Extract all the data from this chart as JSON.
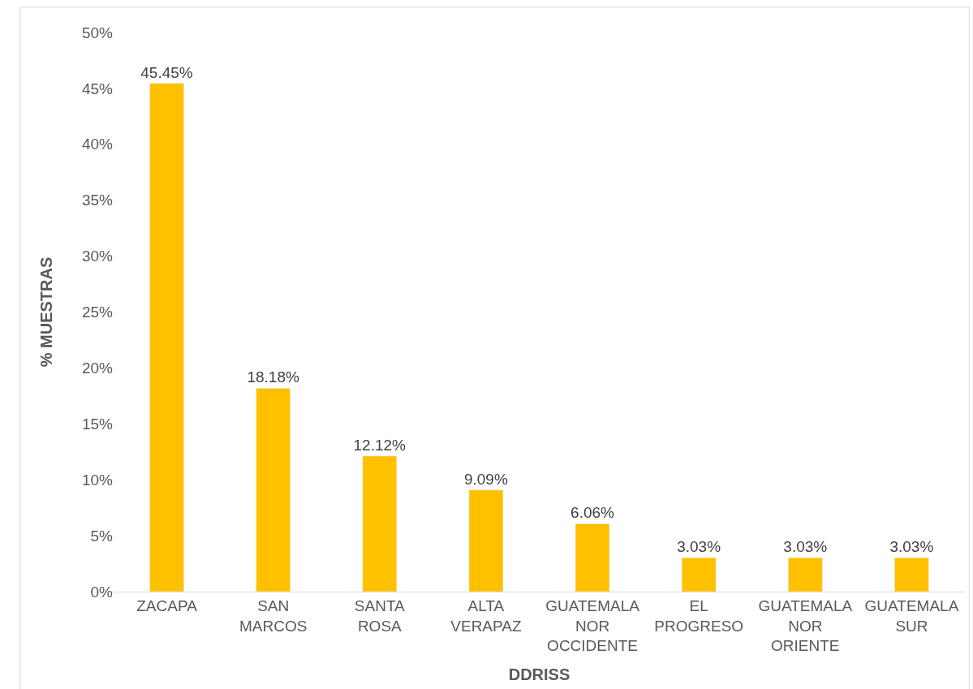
{
  "chart_data": {
    "type": "bar",
    "xlabel": "DDRISS",
    "ylabel": "% MUESTRAS",
    "categories": [
      "ZACAPA",
      "SAN MARCOS",
      "SANTA ROSA",
      "ALTA VERAPAZ",
      "GUATEMALA NOR OCCIDENTE",
      "EL PROGRESO",
      "GUATEMALA NOR ORIENTE",
      "GUATEMALA SUR"
    ],
    "values": [
      45.45,
      18.18,
      12.12,
      9.09,
      6.06,
      3.03,
      3.03,
      3.03
    ],
    "value_labels": [
      "45.45%",
      "18.18%",
      "12.12%",
      "9.09%",
      "6.06%",
      "3.03%",
      "3.03%",
      "3.03%"
    ],
    "color": "#ffc000",
    "ylim": [
      0,
      50
    ],
    "yticks": [
      {
        "value": 0,
        "label": "0%"
      },
      {
        "value": 5,
        "label": "5%"
      },
      {
        "value": 10,
        "label": "10%"
      },
      {
        "value": 15,
        "label": "15%"
      },
      {
        "value": 20,
        "label": "20%"
      },
      {
        "value": 25,
        "label": "25%"
      },
      {
        "value": 30,
        "label": "30%"
      },
      {
        "value": 35,
        "label": "35%"
      },
      {
        "value": 40,
        "label": "40%"
      },
      {
        "value": 45,
        "label": "45%"
      },
      {
        "value": 50,
        "label": "50%"
      }
    ],
    "grid": false
  }
}
